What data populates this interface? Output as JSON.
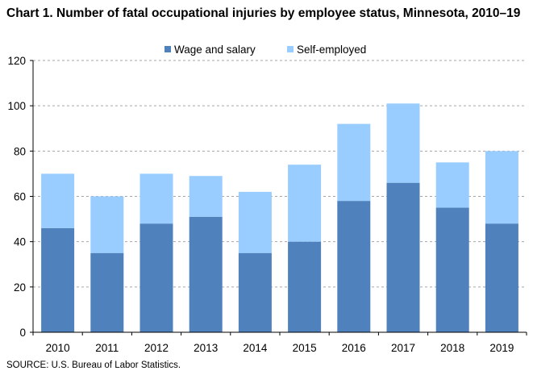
{
  "title": "Chart 1. Number of fatal occupational injuries by employee status, Minnesota, 2010–19",
  "source": "SOURCE: U.S. Bureau of Labor Statistics.",
  "colors": {
    "wage": "#4f81bd",
    "self": "#99ccff",
    "grid": "#a6a6a6",
    "axis": "#000000"
  },
  "chart_data": {
    "type": "bar",
    "stacked": true,
    "title": "Chart 1. Number of fatal occupational injuries by employee status, Minnesota, 2010–19",
    "categories": [
      "2010",
      "2011",
      "2012",
      "2013",
      "2014",
      "2015",
      "2016",
      "2017",
      "2018",
      "2019"
    ],
    "series": [
      {
        "name": "Wage and salary",
        "values": [
          46,
          35,
          48,
          51,
          35,
          40,
          58,
          66,
          55,
          48
        ]
      },
      {
        "name": "Self-employed",
        "values": [
          24,
          25,
          22,
          18,
          27,
          34,
          34,
          35,
          20,
          32
        ]
      }
    ],
    "ylim": [
      0,
      120
    ],
    "yticks": [
      0,
      20,
      40,
      60,
      80,
      100,
      120
    ],
    "grid": "horizontal dashed",
    "legend": "top-center"
  }
}
